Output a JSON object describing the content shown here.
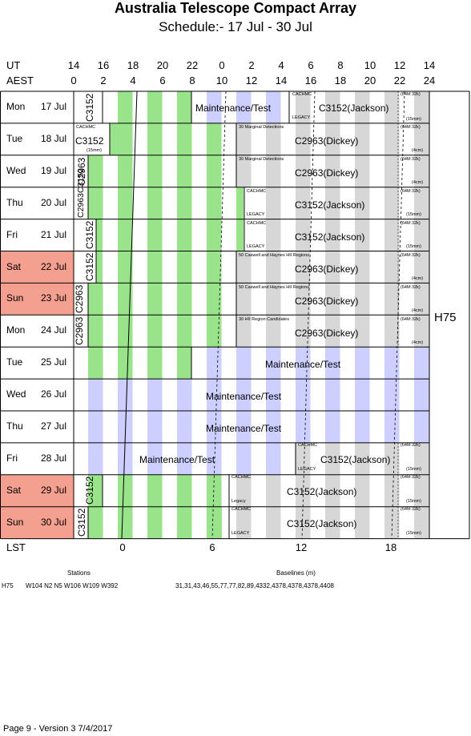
{
  "title": "Australia Telescope Compact Array",
  "subtitle": "Schedule:- 17 Jul - 30 Jul",
  "axis": {
    "ut_label": "UT",
    "aest_label": "AEST",
    "lst_label": "LST",
    "ut_ticks": [
      "14",
      "16",
      "18",
      "20",
      "22",
      "0",
      "2",
      "4",
      "6",
      "8",
      "10",
      "12",
      "14"
    ],
    "aest_ticks": [
      "0",
      "2",
      "4",
      "6",
      "8",
      "10",
      "12",
      "14",
      "16",
      "18",
      "20",
      "22",
      "24"
    ],
    "lst_ticks": [
      "0",
      "6",
      "12",
      "18"
    ]
  },
  "array_config": "H75",
  "colors": {
    "weekend": "#f4a090",
    "green": "#99e38b",
    "lavender": "#cccfff",
    "grey": "#d7d7d7"
  },
  "days": [
    {
      "name": "Mon",
      "date": "17 Jul",
      "weekend": false
    },
    {
      "name": "Tue",
      "date": "18 Jul",
      "weekend": false
    },
    {
      "name": "Wed",
      "date": "19 Jul",
      "weekend": false
    },
    {
      "name": "Thu",
      "date": "20 Jul",
      "weekend": false
    },
    {
      "name": "Fri",
      "date": "21 Jul",
      "weekend": false
    },
    {
      "name": "Sat",
      "date": "22 Jul",
      "weekend": true
    },
    {
      "name": "Sun",
      "date": "23 Jul",
      "weekend": true
    },
    {
      "name": "Mon",
      "date": "24 Jul",
      "weekend": false
    },
    {
      "name": "Tue",
      "date": "25 Jul",
      "weekend": false
    },
    {
      "name": "Wed",
      "date": "26 Jul",
      "weekend": false
    },
    {
      "name": "Thu",
      "date": "27 Jul",
      "weekend": false
    },
    {
      "name": "Fri",
      "date": "28 Jul",
      "weekend": false
    },
    {
      "name": "Sat",
      "date": "29 Jul",
      "weekend": true
    },
    {
      "name": "Sun",
      "date": "30 Jul",
      "weekend": true
    }
  ],
  "entries": {
    "r1_vert": "C3152",
    "r1_maint": "Maintenance/Test",
    "r1_cachmc": "CACHMC",
    "r1_proj": "C3152(Jackson)",
    "r1_legacy": "LEGACY",
    "r1_corr": "(64M 32k)",
    "r1_rx": "(15mm)",
    "r2_cachmc": "CACHMC",
    "r2_c3152": "C3152",
    "r2_rx_left": "(15mm)",
    "r2_desc": "30 Marginal Detections",
    "r2_proj": "C2963(Dickey)",
    "r2_corr": "(64M 32k)",
    "r2_rx": "(4cm)",
    "r3_vert": "C2963",
    "r3_desc": "30 Marginal Detections",
    "r3_proj": "C2963(Dickey)",
    "r3_corr": "(64M 32k)",
    "r3_rx": "(4cm)",
    "r4_vert": "C2963C3152",
    "r4_cachmc": "CACHMC",
    "r4_proj": "C3152(Jackson)",
    "r4_legacy": "LEGACY",
    "r4_corr": "(64M 32k)",
    "r4_rx": "(15mm)",
    "r5_vert": "C3152",
    "r5_cachmc": "CACHMC",
    "r5_proj": "C3152(Jackson)",
    "r5_legacy": "LEGACY",
    "r5_corr": "(64M 32k)",
    "r5_rx": "(15mm)",
    "r6_vert": "C3152",
    "r6_desc": "50 Caswell and Haynes HII Regions",
    "r6_proj": "C2963(Dickey)",
    "r6_corr": "(64M 32k)",
    "r6_rx": "(4cm)",
    "r7_vert": "C2963",
    "r7_desc": "50 Caswell and Haynes HII Regions",
    "r7_proj": "C2963(Dickey)",
    "r7_corr": "(64M 32k)",
    "r7_rx": "(4cm)",
    "r8_vert": "C2963",
    "r8_desc": "30 HII Region Candidates",
    "r8_proj": "C2963(Dickey)",
    "r8_corr": "(64M 32k)",
    "r8_rx": "(4cm)",
    "r9_maint": "Maintenance/Test",
    "r10_maint": "Maintenance/Test",
    "r11_maint": "Maintenance/Test",
    "r12_maint": "Maintenance/Test",
    "r12_cachmc": "CACHMC",
    "r12_proj": "C3152(Jackson)",
    "r12_legacy": "LEGACY",
    "r12_corr": "(64M 32k)",
    "r12_rx": "(15mm)",
    "r13_vert": "C3152",
    "r13_cachmc": "CACHMC",
    "r13_proj": "C3152(Jackson)",
    "r13_legacy": "Legacy",
    "r13_corr": "(64M 32k)",
    "r13_rx": "(15mm)",
    "r14_vert": "C3152",
    "r14_cachmc": "CACHMC",
    "r14_proj": "C3152(Jackson)",
    "r14_legacy": "LEGACY",
    "r14_corr": "(64M 32k)",
    "r14_rx": "(15mm)"
  },
  "footer_info": {
    "stations_header": "Stations",
    "baselines_header": "Baselines (m)",
    "config": "H75",
    "stations": "W104 N2 N5 W106 W109 W392",
    "baselines": "31,31,43,46,55,77,77,82,89,4332,4378,4378,4378,4408"
  },
  "footer": "Page 9 - Version 3  7/4/2017"
}
